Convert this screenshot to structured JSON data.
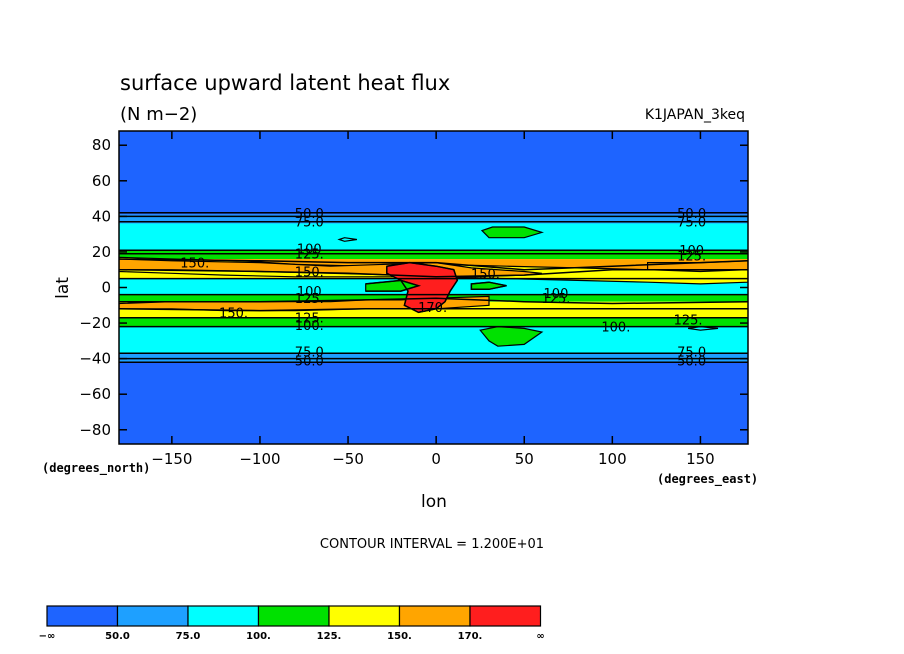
{
  "chart_data": {
    "type": "heatmap",
    "title": "surface upward latent heat flux",
    "units": "(N m−2)",
    "run_label": "K1JAPAN_3keq",
    "xlabel": "lon",
    "ylabel": "lat",
    "xunit": "(degrees_east)",
    "yunit": "(degrees_north)",
    "xlim": [
      -180,
      177
    ],
    "ylim": [
      -88,
      88
    ],
    "xticks": [
      -150,
      -100,
      -50,
      0,
      50,
      100,
      150
    ],
    "xtick_labels": [
      "−150",
      "−100",
      "−50",
      "0",
      "50",
      "100",
      "150"
    ],
    "yticks": [
      80,
      60,
      40,
      20,
      0,
      -20,
      -40,
      -60,
      -80
    ],
    "ytick_labels": [
      "80",
      "60",
      "40",
      "20",
      "0",
      "−20",
      "−40",
      "−60",
      "−80"
    ],
    "contour_interval_text": "CONTOUR INTERVAL = 1.200E+01",
    "legend": {
      "colors": [
        "#1e64ff",
        "#1ea0ff",
        "#00ffff",
        "#00e100",
        "#ffff00",
        "#ffa500",
        "#ff1e1e"
      ],
      "labels": [
        "−∞",
        "50.0",
        "75.0",
        "100.",
        "125.",
        "150.",
        "170.",
        "∞"
      ]
    },
    "zonal_bands": [
      {
        "lat_min": 41,
        "lat_max": 88,
        "level": 0
      },
      {
        "lat_min": 36,
        "lat_max": 41,
        "level": 1
      },
      {
        "lat_min": 21,
        "lat_max": 36,
        "level": 2
      },
      {
        "lat_min": 16,
        "lat_max": 21,
        "level": 3
      },
      {
        "lat_min": 10,
        "lat_max": 16,
        "level": 5
      },
      {
        "lat_min": 5,
        "lat_max": 10,
        "level": 4
      },
      {
        "lat_min": -4,
        "lat_max": 5,
        "level": 2
      },
      {
        "lat_min": -8,
        "lat_max": -4,
        "level": 3
      },
      {
        "lat_min": -17,
        "lat_max": -8,
        "level": 4
      },
      {
        "lat_min": -22,
        "lat_max": -17,
        "level": 3
      },
      {
        "lat_min": -37,
        "lat_max": -22,
        "level": 2
      },
      {
        "lat_min": -42,
        "lat_max": -37,
        "level": 1
      },
      {
        "lat_min": -88,
        "lat_max": -42,
        "level": 0
      }
    ],
    "regions": [
      {
        "level": 4,
        "points": [
          [
            -180,
            17
          ],
          [
            -150,
            16
          ],
          [
            -110,
            15
          ],
          [
            -80,
            13
          ],
          [
            -40,
            12
          ],
          [
            0,
            13
          ],
          [
            40,
            12
          ],
          [
            80,
            11
          ],
          [
            120,
            10
          ],
          [
            150,
            12
          ],
          [
            177,
            13
          ],
          [
            177,
            3
          ],
          [
            150,
            2
          ],
          [
            120,
            3
          ],
          [
            80,
            4
          ],
          [
            40,
            5
          ],
          [
            0,
            6
          ],
          [
            -40,
            6
          ],
          [
            -80,
            6
          ],
          [
            -120,
            7
          ],
          [
            -150,
            8
          ],
          [
            -180,
            9
          ]
        ]
      },
      {
        "level": 5,
        "points": [
          [
            -180,
            16
          ],
          [
            -150,
            15
          ],
          [
            -100,
            14
          ],
          [
            -60,
            12
          ],
          [
            -30,
            13
          ],
          [
            0,
            14
          ],
          [
            20,
            11
          ],
          [
            50,
            9
          ],
          [
            60,
            8
          ],
          [
            50,
            7
          ],
          [
            20,
            6
          ],
          [
            -20,
            7
          ],
          [
            -60,
            8
          ],
          [
            -100,
            9
          ],
          [
            -150,
            10
          ],
          [
            -180,
            10
          ]
        ]
      },
      {
        "level": 5,
        "points": [
          [
            120,
            14
          ],
          [
            150,
            14
          ],
          [
            177,
            15
          ],
          [
            177,
            10
          ],
          [
            150,
            9
          ],
          [
            120,
            10
          ]
        ]
      },
      {
        "level": 5,
        "points": [
          [
            -180,
            -9
          ],
          [
            -150,
            -8
          ],
          [
            -100,
            -8
          ],
          [
            -60,
            -8
          ],
          [
            -40,
            -7
          ],
          [
            -20,
            -7
          ],
          [
            0,
            -6
          ],
          [
            30,
            -5
          ],
          [
            30,
            -10
          ],
          [
            0,
            -12
          ],
          [
            -40,
            -12
          ],
          [
            -80,
            -13
          ],
          [
            -120,
            -13
          ],
          [
            -150,
            -12
          ],
          [
            -180,
            -12
          ]
        ]
      },
      {
        "level": 6,
        "points": [
          [
            -28,
            12
          ],
          [
            -15,
            14
          ],
          [
            0,
            12
          ],
          [
            10,
            10
          ],
          [
            12,
            4
          ],
          [
            8,
            -2
          ],
          [
            5,
            -8
          ],
          [
            0,
            -12
          ],
          [
            -10,
            -14
          ],
          [
            -18,
            -10
          ],
          [
            -16,
            -2
          ],
          [
            -20,
            4
          ],
          [
            -28,
            8
          ]
        ]
      },
      {
        "level": 3,
        "points": [
          [
            26,
            32
          ],
          [
            32,
            34
          ],
          [
            50,
            34
          ],
          [
            60,
            31
          ],
          [
            50,
            28
          ],
          [
            30,
            28
          ]
        ]
      },
      {
        "level": 3,
        "points": [
          [
            25,
            -24
          ],
          [
            35,
            -22
          ],
          [
            50,
            -23
          ],
          [
            60,
            -25
          ],
          [
            50,
            -32
          ],
          [
            35,
            -33
          ],
          [
            30,
            -30
          ]
        ]
      },
      {
        "level": 3,
        "points": [
          [
            -40,
            2
          ],
          [
            -20,
            4
          ],
          [
            -10,
            1
          ],
          [
            -20,
            -2
          ],
          [
            -40,
            -2
          ]
        ]
      },
      {
        "level": 3,
        "points": [
          [
            20,
            2
          ],
          [
            30,
            3
          ],
          [
            40,
            1
          ],
          [
            30,
            -1
          ],
          [
            20,
            -1
          ]
        ]
      },
      {
        "level": 2,
        "points": [
          [
            -55,
            27
          ],
          [
            -52,
            28
          ],
          [
            -45,
            27
          ],
          [
            -52,
            26
          ]
        ]
      },
      {
        "level": 2,
        "points": [
          [
            143,
            -23
          ],
          [
            150,
            -22
          ],
          [
            160,
            -23
          ],
          [
            150,
            -24
          ]
        ]
      }
    ],
    "contour_lines": [
      [
        [
          -180,
          42
        ],
        [
          -120,
          42
        ],
        [
          -60,
          42
        ],
        [
          0,
          42
        ],
        [
          60,
          42
        ],
        [
          120,
          42
        ],
        [
          177,
          42
        ]
      ],
      [
        [
          -180,
          40
        ],
        [
          -120,
          40
        ],
        [
          -60,
          40
        ],
        [
          0,
          40
        ],
        [
          60,
          40
        ],
        [
          120,
          40
        ],
        [
          177,
          40
        ]
      ],
      [
        [
          -180,
          37
        ],
        [
          -60,
          37
        ],
        [
          0,
          37
        ],
        [
          60,
          37
        ],
        [
          177,
          37
        ]
      ],
      [
        [
          -180,
          21
        ],
        [
          -60,
          21
        ],
        [
          0,
          21
        ],
        [
          60,
          21
        ],
        [
          177,
          21
        ]
      ],
      [
        [
          -180,
          19
        ],
        [
          -60,
          19
        ],
        [
          0,
          19
        ],
        [
          60,
          19
        ],
        [
          177,
          19
        ]
      ],
      [
        [
          -180,
          16
        ],
        [
          -100,
          15
        ],
        [
          -50,
          14
        ],
        [
          0,
          14
        ],
        [
          50,
          10
        ],
        [
          100,
          12
        ],
        [
          177,
          15
        ]
      ],
      [
        [
          -180,
          10
        ],
        [
          -100,
          9
        ],
        [
          -50,
          8
        ],
        [
          0,
          6
        ],
        [
          50,
          7
        ],
        [
          100,
          10
        ],
        [
          177,
          10
        ]
      ],
      [
        [
          -180,
          5
        ],
        [
          -60,
          5
        ],
        [
          -20,
          5
        ],
        [
          20,
          5
        ],
        [
          60,
          5
        ],
        [
          177,
          5
        ]
      ],
      [
        [
          -180,
          -4
        ],
        [
          -60,
          -4
        ],
        [
          -20,
          -4
        ],
        [
          20,
          -4
        ],
        [
          60,
          -4
        ],
        [
          177,
          -4
        ]
      ],
      [
        [
          -180,
          -8
        ],
        [
          -100,
          -8
        ],
        [
          -40,
          -7
        ],
        [
          0,
          -6
        ],
        [
          50,
          -8
        ],
        [
          100,
          -9
        ],
        [
          177,
          -8
        ]
      ],
      [
        [
          -180,
          -12
        ],
        [
          -100,
          -13
        ],
        [
          -40,
          -12
        ],
        [
          0,
          -12
        ],
        [
          50,
          -12
        ],
        [
          100,
          -12
        ],
        [
          177,
          -12
        ]
      ],
      [
        [
          -180,
          -17
        ],
        [
          -60,
          -17
        ],
        [
          0,
          -17
        ],
        [
          60,
          -17
        ],
        [
          177,
          -17
        ]
      ],
      [
        [
          -180,
          -22
        ],
        [
          -60,
          -22
        ],
        [
          0,
          -22
        ],
        [
          60,
          -22
        ],
        [
          177,
          -22
        ]
      ],
      [
        [
          -180,
          -37
        ],
        [
          -60,
          -37
        ],
        [
          0,
          -37
        ],
        [
          60,
          -37
        ],
        [
          177,
          -37
        ]
      ],
      [
        [
          -180,
          -40
        ],
        [
          -60,
          -40
        ],
        [
          0,
          -40
        ],
        [
          60,
          -40
        ],
        [
          177,
          -40
        ]
      ],
      [
        [
          -180,
          -42
        ],
        [
          -60,
          -42
        ],
        [
          0,
          -42
        ],
        [
          60,
          -42
        ],
        [
          177,
          -42
        ]
      ],
      [
        [
          -28,
          12
        ],
        [
          -15,
          14
        ],
        [
          0,
          12
        ],
        [
          10,
          10
        ],
        [
          12,
          4
        ],
        [
          8,
          -2
        ],
        [
          5,
          -8
        ],
        [
          0,
          -12
        ],
        [
          -10,
          -14
        ],
        [
          -18,
          -10
        ],
        [
          -16,
          -2
        ],
        [
          -20,
          4
        ],
        [
          -28,
          8
        ],
        [
          -28,
          12
        ]
      ],
      [
        [
          -40,
          2
        ],
        [
          -20,
          4
        ],
        [
          -10,
          1
        ],
        [
          -20,
          -2
        ],
        [
          -40,
          -2
        ]
      ],
      [
        [
          40,
          1
        ],
        [
          30,
          3
        ],
        [
          20,
          2
        ],
        [
          20,
          -1
        ],
        [
          30,
          -1
        ],
        [
          40,
          1
        ]
      ]
    ],
    "contour_labels": [
      {
        "text": "50.0",
        "lon": -72,
        "lat": 42
      },
      {
        "text": "75.0",
        "lon": -72,
        "lat": 37
      },
      {
        "text": "100",
        "lon": -72,
        "lat": 22
      },
      {
        "text": "125.",
        "lon": -72,
        "lat": 19
      },
      {
        "text": "150.",
        "lon": -137,
        "lat": 14
      },
      {
        "text": "150.",
        "lon": -72,
        "lat": 9
      },
      {
        "text": "100",
        "lon": -72,
        "lat": -2
      },
      {
        "text": "125.",
        "lon": -72,
        "lat": -6
      },
      {
        "text": "150.",
        "lon": -115,
        "lat": -14
      },
      {
        "text": "125.",
        "lon": -72,
        "lat": -17
      },
      {
        "text": "100.",
        "lon": -72,
        "lat": -21
      },
      {
        "text": "75.0",
        "lon": -72,
        "lat": -36
      },
      {
        "text": "50.0",
        "lon": -72,
        "lat": -41
      },
      {
        "text": "150.",
        "lon": 28,
        "lat": 8
      },
      {
        "text": "170.",
        "lon": -2,
        "lat": -11
      },
      {
        "text": "100",
        "lon": 68,
        "lat": -3
      },
      {
        "text": "125.",
        "lon": 68,
        "lat": -6
      },
      {
        "text": "100.",
        "lon": 102,
        "lat": -22
      },
      {
        "text": "125.",
        "lon": 143,
        "lat": -18
      },
      {
        "text": "50.0",
        "lon": 145,
        "lat": 42
      },
      {
        "text": "75.0",
        "lon": 145,
        "lat": 37
      },
      {
        "text": "100",
        "lon": 145,
        "lat": 21
      },
      {
        "text": "125.",
        "lon": 145,
        "lat": 18
      },
      {
        "text": "75.0",
        "lon": 145,
        "lat": -36
      },
      {
        "text": "50.0",
        "lon": 145,
        "lat": -41
      }
    ]
  }
}
